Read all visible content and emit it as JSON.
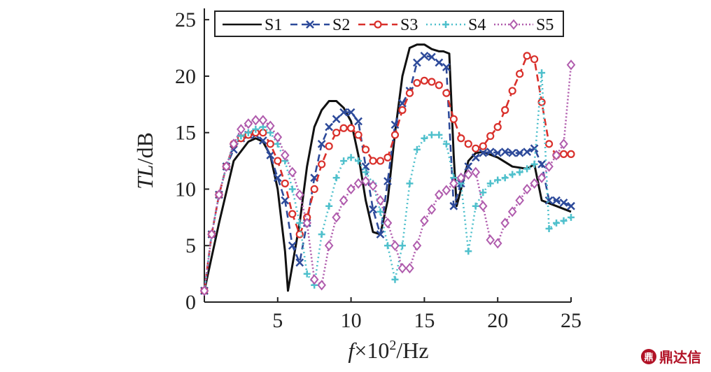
{
  "chart_data": {
    "type": "line",
    "xlabel_italic": "f",
    "xlabel_rest": "×10",
    "xlabel_sup": "2",
    "xlabel_unit": "/Hz",
    "ylabel_italic": "TL",
    "ylabel_rest": "/dB",
    "xlim": [
      0,
      25
    ],
    "ylim": [
      0,
      26
    ],
    "xticks": [
      5,
      10,
      15,
      20,
      25
    ],
    "yticks": [
      0,
      5,
      10,
      15,
      20,
      25
    ],
    "legend_position": "top",
    "series": [
      {
        "name": "S1",
        "color": "#111111",
        "dash": "",
        "marker": "none",
        "x": [
          0,
          1,
          2,
          3,
          3.5,
          4,
          4.5,
          5,
          5.5,
          5.7,
          5.9,
          6.5,
          7,
          7.5,
          8,
          8.5,
          9,
          9.5,
          10,
          10.5,
          11,
          11.5,
          12,
          12.5,
          13,
          13.5,
          14,
          14.5,
          15,
          15.5,
          16,
          16.3,
          16.7,
          17,
          17.2,
          17.5,
          18,
          18.5,
          19,
          20,
          21,
          22,
          22.5,
          23,
          24,
          25
        ],
        "y": [
          1,
          7,
          12.5,
          14.2,
          14.5,
          14.2,
          13,
          10,
          4.5,
          1,
          2.5,
          7,
          12,
          15.5,
          17,
          17.8,
          17.8,
          17.2,
          16,
          13,
          9,
          6.2,
          6,
          9,
          15,
          20,
          22.5,
          22.8,
          22.8,
          22.4,
          22.2,
          22.2,
          22,
          13,
          8.5,
          10,
          12.5,
          13.2,
          13.3,
          12.8,
          12,
          11.8,
          12.2,
          9,
          8.5,
          8
        ]
      },
      {
        "name": "S2",
        "color": "#2d4a9a",
        "dash": "10,6",
        "marker": "x",
        "x": [
          0,
          0.5,
          1,
          1.5,
          2,
          2.5,
          3,
          3.5,
          4,
          4.5,
          5,
          5.5,
          6,
          6.5,
          7,
          7.5,
          8,
          8.5,
          9,
          9.5,
          10,
          10.5,
          11,
          11.5,
          12,
          12.5,
          13,
          13.5,
          14,
          14.5,
          15,
          15.5,
          16,
          16.5,
          17,
          17.5,
          18,
          18.5,
          19,
          19.5,
          20,
          20.5,
          21,
          21.5,
          22,
          22.5,
          23,
          23.5,
          24,
          24.5,
          25
        ],
        "y": [
          1,
          6,
          9.5,
          12,
          13.5,
          14.5,
          14.8,
          14.8,
          14.3,
          13,
          11,
          9,
          5,
          3.5,
          7,
          11,
          14,
          15.5,
          16.2,
          16.8,
          16.8,
          16,
          12,
          8.2,
          6,
          10.7,
          15.7,
          17.6,
          18.7,
          21.2,
          21.8,
          21.7,
          21.2,
          20.8,
          8.5,
          10.5,
          12,
          12.8,
          13.2,
          13.3,
          13.2,
          13.3,
          13.2,
          13.2,
          13.3,
          13.6,
          12.2,
          9,
          9,
          8.8,
          8.5
        ]
      },
      {
        "name": "S3",
        "color": "#d9302b",
        "dash": "10,6",
        "marker": "circle",
        "x": [
          0,
          0.5,
          1,
          1.5,
          2,
          2.5,
          3,
          3.5,
          4,
          4.5,
          5,
          5.5,
          6,
          6.5,
          7,
          7.5,
          8,
          8.5,
          9,
          9.5,
          10,
          10.5,
          11,
          11.5,
          12,
          12.5,
          13,
          13.5,
          14,
          14.5,
          15,
          15.5,
          16,
          16.5,
          17,
          17.5,
          18,
          18.5,
          19,
          19.5,
          20,
          20.5,
          21,
          21.5,
          22,
          22.5,
          23,
          23.5,
          24,
          24.5,
          25
        ],
        "y": [
          1,
          6,
          9.5,
          12,
          14,
          14.5,
          14.8,
          15,
          15,
          14,
          12.5,
          10.5,
          7.8,
          6,
          7.5,
          10,
          12.2,
          13.8,
          15,
          15.4,
          15.4,
          14.8,
          13.5,
          12.5,
          12.5,
          12.8,
          14.8,
          17,
          18.5,
          19.4,
          19.6,
          19.5,
          19.2,
          18.5,
          16.2,
          14.5,
          14,
          13.6,
          13.8,
          14.7,
          15.5,
          17,
          18.7,
          20.2,
          21.8,
          21.5,
          17.7,
          14,
          13,
          13.1,
          13.1
        ]
      },
      {
        "name": "S4",
        "color": "#4fc0cc",
        "dash": "2,4",
        "marker": "plus",
        "x": [
          0,
          0.5,
          1,
          1.5,
          2,
          2.5,
          3,
          3.5,
          4,
          4.5,
          5,
          5.5,
          6,
          6.5,
          7,
          7.5,
          8,
          8.5,
          9,
          9.5,
          10,
          10.5,
          11,
          11.5,
          12,
          12.5,
          13,
          13.5,
          14,
          14.5,
          15,
          15.5,
          16,
          16.5,
          17,
          17.5,
          18,
          18.5,
          19,
          19.5,
          20,
          20.5,
          21,
          21.5,
          22,
          22.5,
          23,
          23.5,
          24,
          24.5,
          25
        ],
        "y": [
          1,
          6,
          9.5,
          12,
          14,
          14.7,
          15,
          15.3,
          15.5,
          15,
          14,
          12.5,
          10,
          7,
          2.5,
          1.5,
          6,
          8.5,
          11,
          12.5,
          12.8,
          12.5,
          11.5,
          10.5,
          8,
          5,
          2,
          5,
          10.5,
          13.5,
          14.5,
          14.8,
          14.8,
          14,
          11,
          10.5,
          4.5,
          8.5,
          9.7,
          10.5,
          10.8,
          11,
          11.3,
          11.5,
          11.8,
          12.2,
          20.3,
          6.5,
          7,
          7.2,
          7.5
        ]
      },
      {
        "name": "S5",
        "color": "#b05cad",
        "dash": "2,3",
        "marker": "diamond",
        "x": [
          0,
          0.5,
          1,
          1.5,
          2,
          2.5,
          3,
          3.5,
          4,
          4.5,
          5,
          5.5,
          6,
          6.5,
          7,
          7.5,
          8,
          8.5,
          9,
          9.5,
          10,
          10.5,
          11,
          11.5,
          12,
          12.5,
          13,
          13.5,
          14,
          14.5,
          15,
          15.5,
          16,
          16.5,
          17,
          17.5,
          18,
          18.5,
          19,
          19.5,
          20,
          20.5,
          21,
          21.5,
          22,
          22.5,
          23,
          23.5,
          24,
          24.5,
          25
        ],
        "y": [
          1,
          6,
          9.5,
          12,
          14,
          15.3,
          15.8,
          16.1,
          16.1,
          15.6,
          14.6,
          13,
          11.5,
          9.5,
          7,
          2,
          1.5,
          5,
          7.5,
          9,
          10,
          10.5,
          10.7,
          10.3,
          9,
          7,
          5,
          3,
          3,
          5,
          7.2,
          8.2,
          9.5,
          9.9,
          10.5,
          11,
          11.3,
          11.5,
          8.5,
          5.5,
          5.2,
          7,
          8,
          9,
          10,
          10.5,
          11,
          12,
          13,
          14,
          21
        ]
      }
    ]
  }
}
